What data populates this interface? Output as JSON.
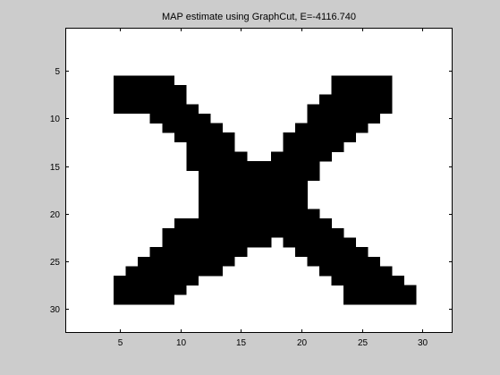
{
  "chart_data": {
    "type": "heatmap",
    "title": "MAP estimate using GraphCut, E=-4116.740",
    "xlabel": "",
    "ylabel": "",
    "xlim": [
      0.5,
      32.5
    ],
    "ylim": [
      0.5,
      32.5
    ],
    "y_reversed": true,
    "grid": false,
    "colormap": [
      "#ffffff",
      "#000000"
    ],
    "x_ticks": [
      5,
      10,
      15,
      20,
      25,
      30
    ],
    "x_tick_labels": [
      "5",
      "10",
      "15",
      "20",
      "25",
      "30"
    ],
    "y_ticks": [
      5,
      10,
      15,
      20,
      25,
      30
    ],
    "y_tick_labels": [
      "5",
      "10",
      "15",
      "20",
      "25",
      "30"
    ],
    "rows": 32,
    "cols": 32,
    "values": [
      "00000000000000000000000000000000",
      "00000000000000000000000000000000",
      "00000000000000000000000000000000",
      "00000000000000000000000000000000",
      "00000000000000000000000000000000",
      "00001111100000000000001111100000",
      "00001111110000000000001111100000",
      "00001111110000000000011111100000",
      "00001111111000000000111111100000",
      "00000001111100000000111111000000",
      "00000000111110000001111110000000",
      "00000000011111000011111100000000",
      "00000000001111000011111000000000",
      "00000000001111100111110000000000",
      "00000000001111111111100000000000",
      "00000000000111111111100000000000",
      "00000000000111111111000000000000",
      "00000000000111111111000000000000",
      "00000000000111111111000000000000",
      "00000000000111111111100000000000",
      "00000000011111111111110000000000",
      "00000000111111111111111000000000",
      "00000000111111111011111100000000",
      "00000001111111100001111110000000",
      "00000011111111000000111111000000",
      "00000111111110000000011111100000",
      "00001111111000000000001111110000",
      "00001111110000000000000111111000",
      "00001111100000000000000111111000",
      "00000000000000000000000000000000",
      "00000000000000000000000000000000",
      "00000000000000000000000000000000"
    ]
  }
}
